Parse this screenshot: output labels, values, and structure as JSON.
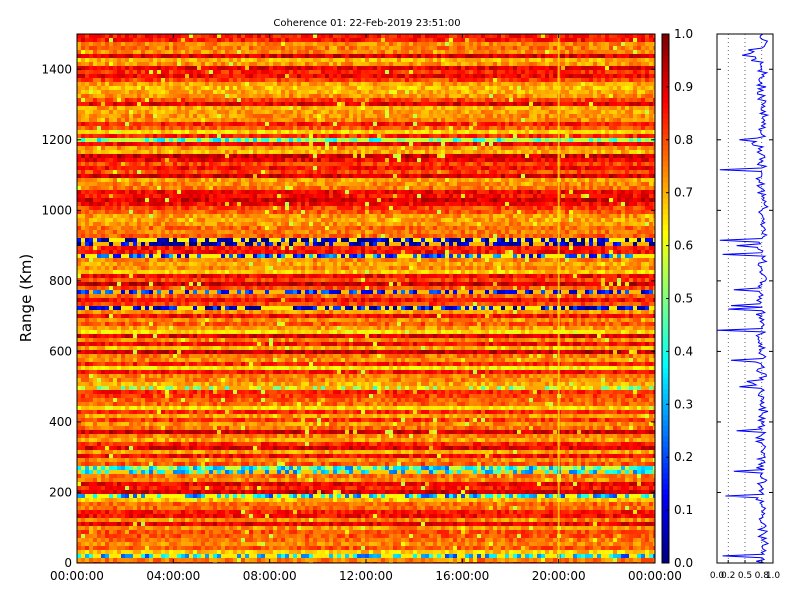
{
  "chart_data": [
    {
      "type": "heatmap",
      "title": "Coherence 01: 22-Feb-2019 23:51:00",
      "ylabel": "Range (Km)",
      "xlabel": "",
      "x_ticks": [
        "00:00:00",
        "04:00:00",
        "08:00:00",
        "12:00:00",
        "16:00:00",
        "20:00:00",
        "00:00:00"
      ],
      "y_ticks": [
        "0",
        "200",
        "400",
        "600",
        "800",
        "1000",
        "1200",
        "1400"
      ],
      "xlim": [
        0,
        24
      ],
      "ylim": [
        0,
        1500
      ],
      "colormap": "jet",
      "colorbar": {
        "range": [
          0.0,
          1.0
        ],
        "ticks": [
          "0.0",
          "0.1",
          "0.2",
          "0.3",
          "0.4",
          "0.5",
          "0.6",
          "0.7",
          "0.8",
          "0.9",
          "1.0"
        ]
      },
      "low_coherence_bands_km": [
        {
          "range": [
            18,
            24
          ],
          "value": 0.3
        },
        {
          "range": [
            180,
            190
          ],
          "value": 0.3
        },
        {
          "range": [
            255,
            270
          ],
          "value": 0.35
        },
        {
          "range": [
            375,
            380
          ],
          "value": 0.5
        },
        {
          "range": [
            490,
            500
          ],
          "value": 0.55
        },
        {
          "range": [
            570,
            575
          ],
          "value": 0.25
        },
        {
          "range": [
            718,
            730
          ],
          "value": 0.1
        },
        {
          "range": [
            760,
            775
          ],
          "value": 0.15
        },
        {
          "range": [
            870,
            880
          ],
          "value": 0.2
        },
        {
          "range": [
            895,
            920
          ],
          "value": 0.05
        },
        {
          "range": [
            1110,
            1118
          ],
          "value": 0.4
        },
        {
          "range": [
            1195,
            1200
          ],
          "value": 0.45
        }
      ]
    },
    {
      "type": "line",
      "title": "",
      "x_ticks": [
        "0.0",
        "0.2",
        "0.5",
        "0.8",
        "1.0"
      ],
      "xlim": [
        0,
        1
      ],
      "ylim": [
        0,
        1500
      ],
      "series": [
        {
          "color": "#0000ff",
          "y": [
            0,
            20,
            40,
            60,
            80,
            100,
            120,
            140,
            160,
            180,
            190,
            200,
            220,
            240,
            260,
            280,
            300,
            320,
            340,
            360,
            375,
            380,
            400,
            420,
            440,
            460,
            480,
            500,
            520,
            540,
            560,
            575,
            580,
            600,
            620,
            640,
            660,
            680,
            700,
            720,
            730,
            740,
            760,
            775,
            780,
            800,
            820,
            840,
            860,
            875,
            880,
            900,
            915,
            920,
            940,
            960,
            980,
            1000,
            1020,
            1040,
            1060,
            1080,
            1100,
            1115,
            1120,
            1140,
            1160,
            1180,
            1200,
            1220,
            1240,
            1260,
            1280,
            1300,
            1320,
            1340,
            1360,
            1380,
            1400,
            1420,
            1440,
            1460,
            1480,
            1500
          ],
          "x": [
            0.85,
            0.1,
            0.82,
            0.86,
            0.8,
            0.84,
            0.78,
            0.85,
            0.8,
            0.7,
            0.15,
            0.8,
            0.78,
            0.82,
            0.3,
            0.75,
            0.86,
            0.82,
            0.8,
            0.78,
            0.35,
            0.8,
            0.84,
            0.8,
            0.86,
            0.78,
            0.75,
            0.4,
            0.82,
            0.78,
            0.8,
            0.25,
            0.82,
            0.78,
            0.8,
            0.75,
            0.0,
            0.82,
            0.8,
            0.2,
            0.25,
            0.78,
            0.82,
            0.3,
            0.78,
            0.86,
            0.8,
            0.78,
            0.82,
            0.1,
            0.8,
            0.35,
            0.05,
            0.8,
            0.82,
            0.78,
            0.82,
            0.8,
            0.84,
            0.8,
            0.82,
            0.75,
            0.8,
            0.05,
            0.8,
            0.82,
            0.78,
            0.82,
            0.4,
            0.78,
            0.8,
            0.82,
            0.86,
            0.8,
            0.78,
            0.82,
            0.8,
            0.84,
            0.8,
            0.82,
            0.45,
            0.8,
            0.9,
            0.82
          ]
        }
      ]
    }
  ]
}
